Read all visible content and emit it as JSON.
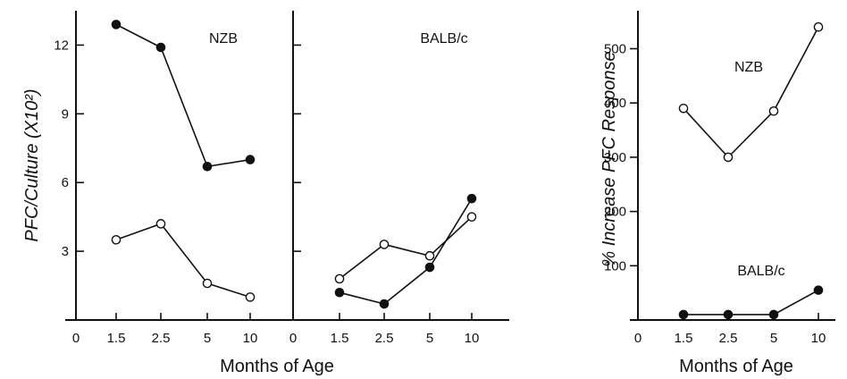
{
  "chart_data": [
    {
      "type": "line",
      "panel_label": "NZB",
      "ylabel": "PFC/Culture (X10²)",
      "xlabel": "",
      "x_ticks": [
        "0",
        "1.5",
        "2.5",
        "5",
        "10"
      ],
      "y_ticks": [
        "3",
        "6",
        "9",
        "12"
      ],
      "ylim": [
        0,
        13.5
      ],
      "series": [
        {
          "marker": "filled",
          "values": [
            12.9,
            11.9,
            6.7,
            7.0
          ]
        },
        {
          "marker": "open",
          "values": [
            3.5,
            4.2,
            1.6,
            1.0
          ]
        }
      ]
    },
    {
      "type": "line",
      "panel_label": "BALB/c",
      "xlabel": "Months of Age",
      "x_ticks": [
        "0",
        "1.5",
        "2.5",
        "5",
        "10"
      ],
      "ylim": [
        0,
        13.5
      ],
      "series": [
        {
          "marker": "filled",
          "values": [
            1.2,
            0.7,
            2.3,
            5.3
          ]
        },
        {
          "marker": "open",
          "values": [
            1.8,
            3.3,
            2.8,
            4.5
          ]
        }
      ]
    },
    {
      "type": "line",
      "ylabel": "% Increase PFC Response",
      "xlabel": "Months of Age",
      "x_ticks": [
        "0",
        "1.5",
        "2.5",
        "5",
        "10"
      ],
      "y_ticks": [
        "100",
        "200",
        "300",
        "400",
        "500"
      ],
      "ylim": [
        0,
        570
      ],
      "series": [
        {
          "name": "NZB",
          "marker": "open",
          "values": [
            390,
            300,
            385,
            540
          ]
        },
        {
          "name": "BALB/c",
          "marker": "filled",
          "values": [
            10,
            10,
            10,
            55
          ]
        }
      ]
    }
  ]
}
